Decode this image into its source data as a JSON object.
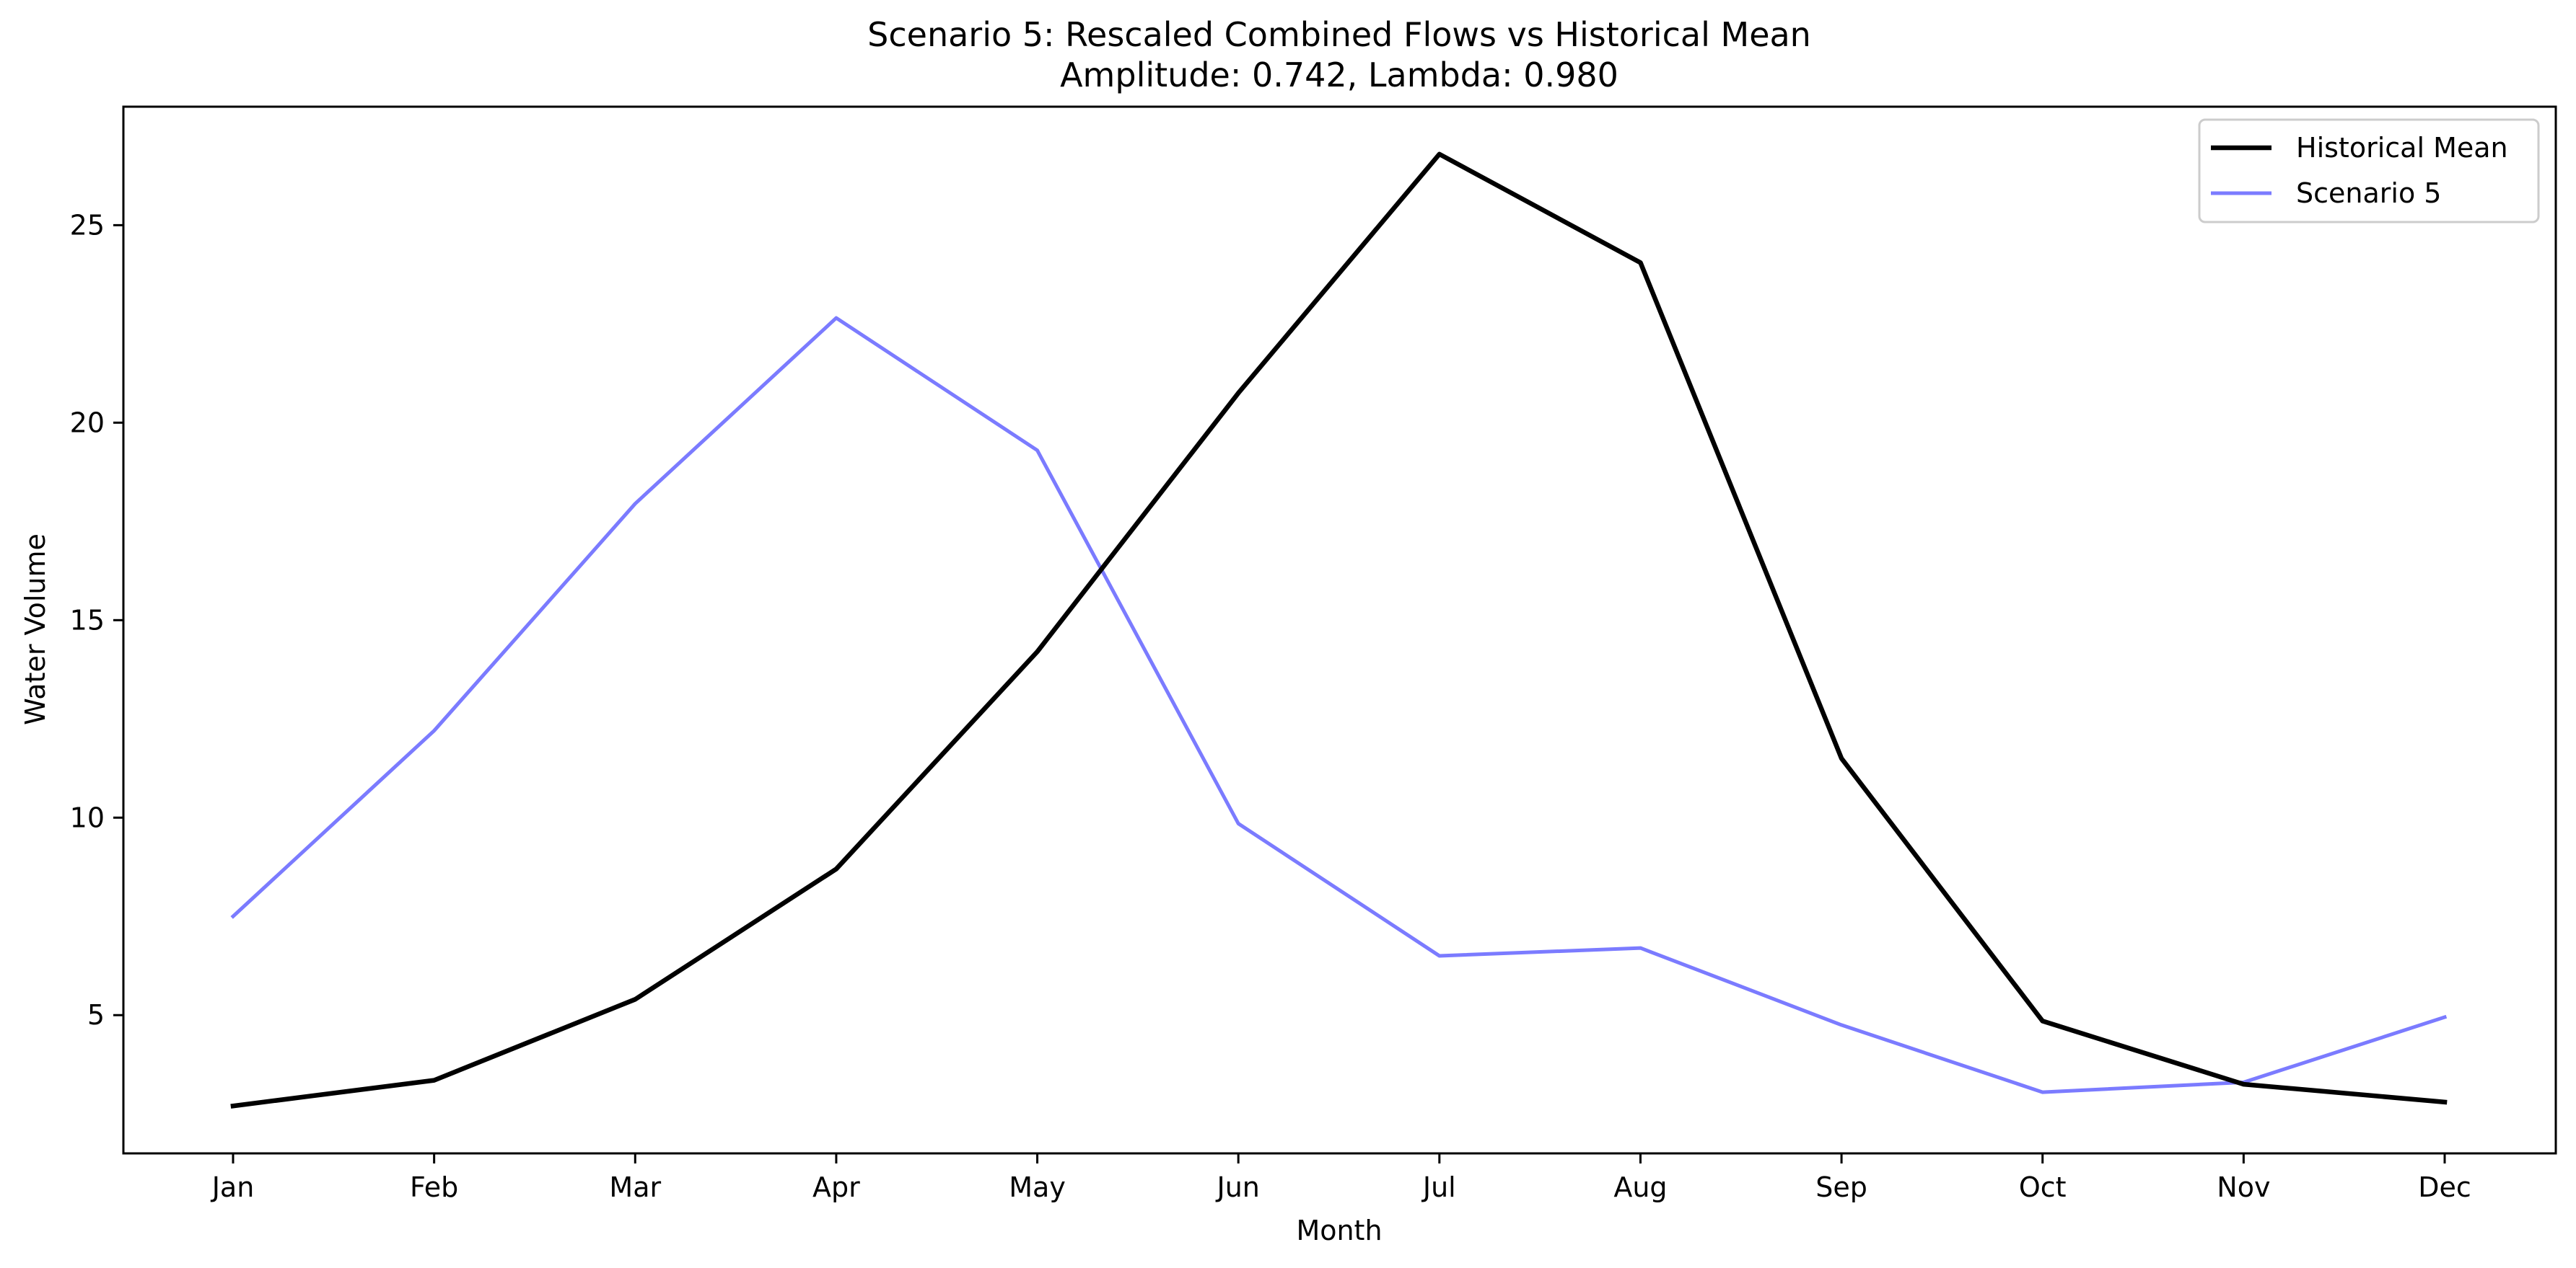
{
  "chart_data": {
    "type": "line",
    "title_line1": "Scenario 5: Rescaled Combined Flows vs Historical Mean",
    "title_line2": "Amplitude: 0.742, Lambda: 0.980",
    "xlabel": "Month",
    "ylabel": "Water Volume",
    "categories": [
      "Jan",
      "Feb",
      "Mar",
      "Apr",
      "May",
      "Jun",
      "Jul",
      "Aug",
      "Sep",
      "Oct",
      "Nov",
      "Dec"
    ],
    "ylim": [
      1.5,
      28
    ],
    "yticks": [
      5,
      10,
      15,
      20,
      25
    ],
    "grid": false,
    "legend_position": "top-right",
    "series": [
      {
        "name": "Historical Mean",
        "color": "#000000",
        "values": [
          2.7,
          3.35,
          5.4,
          8.7,
          14.2,
          20.75,
          26.8,
          24.05,
          11.5,
          4.85,
          3.25,
          2.8
        ]
      },
      {
        "name": "Scenario 5",
        "color": "#7b7bff",
        "values": [
          7.5,
          12.2,
          17.95,
          22.65,
          19.3,
          9.85,
          6.5,
          6.7,
          4.75,
          3.05,
          3.3,
          4.95
        ]
      }
    ]
  }
}
